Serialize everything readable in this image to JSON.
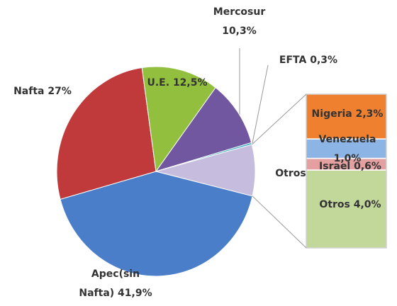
{
  "chart_data": {
    "type": "pie-of-bar",
    "categories": [
      "Apec(sin Nafta)",
      "Nafta",
      "U.E.",
      "Mercosur",
      "EFTA",
      "Otros"
    ],
    "values": [
      41.9,
      27,
      12.5,
      10.3,
      0.3,
      7.9
    ],
    "value_labels": [
      "41,9%",
      "27%",
      "12,5%",
      "10,3%",
      "0,3%",
      null
    ],
    "colors": [
      "#4a7ec8",
      "#c0393b",
      "#92c03e",
      "#7057a0",
      "#3bb0c8",
      "#c6bcdd"
    ],
    "bar": {
      "categories": [
        "Nigeria",
        "Venezuela",
        "Israel",
        "Otros"
      ],
      "values": [
        2.3,
        1.0,
        0.6,
        4.0
      ],
      "value_labels": [
        "2,3%",
        "1,0%",
        "0,6%",
        "4,0%"
      ],
      "colors": [
        "#ee8030",
        "#8cb4e4",
        "#e4a0a0",
        "#c2d89a"
      ]
    }
  }
}
